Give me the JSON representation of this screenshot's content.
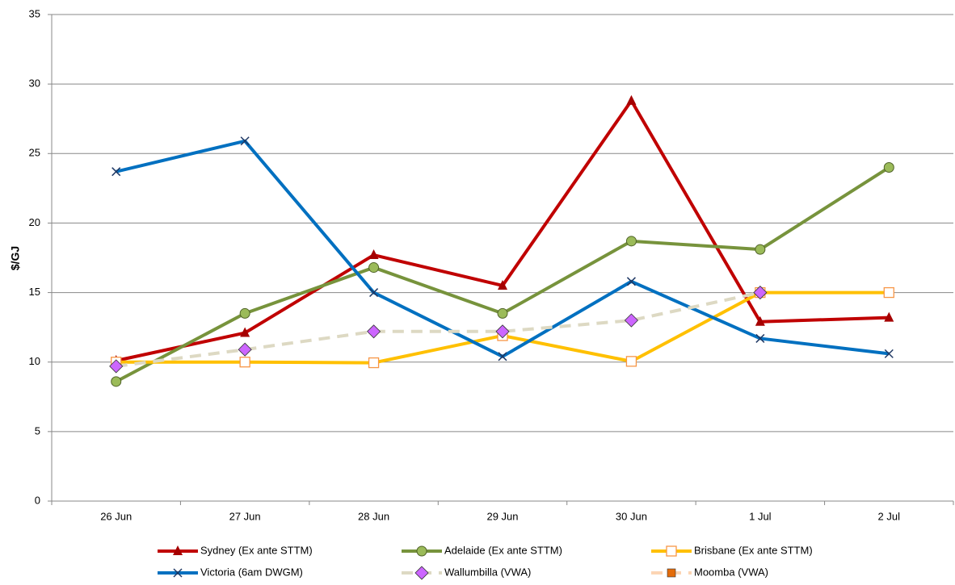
{
  "chart_data": {
    "type": "line",
    "y_label": "$/GJ",
    "categories": [
      "26 Jun",
      "27 Jun",
      "28 Jun",
      "29 Jun",
      "30 Jun",
      "1 Jul",
      "2 Jul"
    ],
    "ylim": [
      0,
      35
    ],
    "yticks": [
      0,
      5,
      10,
      15,
      20,
      25,
      30,
      35
    ],
    "grid": true,
    "series": [
      {
        "name": "Sydney (Ex ante STTM)",
        "color": "#c00000",
        "marker": "triangle",
        "marker_color": "#a50000",
        "dash": false,
        "values": [
          10.1,
          12.1,
          17.7,
          15.5,
          28.8,
          12.9,
          13.2
        ]
      },
      {
        "name": "Adelaide (Ex ante STTM)",
        "color": "#77933c",
        "marker": "circle",
        "marker_color": "#9bbb59",
        "dash": false,
        "values": [
          8.6,
          13.5,
          16.8,
          13.5,
          18.7,
          18.1,
          24.0
        ]
      },
      {
        "name": "Brisbane (Ex ante STTM)",
        "color": "#ffc000",
        "marker": "open-square",
        "marker_color": "#f79646",
        "dash": false,
        "values": [
          10.0,
          10.0,
          9.95,
          11.9,
          10.05,
          15.0,
          15.0
        ]
      },
      {
        "name": "Victoria (6am DWGM)",
        "color": "#0070c0",
        "marker": "x",
        "marker_color": "#1f3864",
        "dash": false,
        "values": [
          23.7,
          25.9,
          15.0,
          10.4,
          15.8,
          11.7,
          10.6
        ]
      },
      {
        "name": "Wallumbilla (VWA)",
        "color": "#ddd9c3",
        "marker": "diamond",
        "marker_color": "#cc66ff",
        "dash": true,
        "values": [
          9.7,
          10.9,
          12.2,
          12.2,
          13.0,
          15.0,
          null
        ]
      },
      {
        "name": "Moomba (VWA)",
        "color": "#fcd5b4",
        "marker": "square",
        "marker_color": "#e46c0a",
        "dash": true,
        "values": [
          null,
          null,
          null,
          null,
          null,
          null,
          null
        ]
      }
    ]
  }
}
